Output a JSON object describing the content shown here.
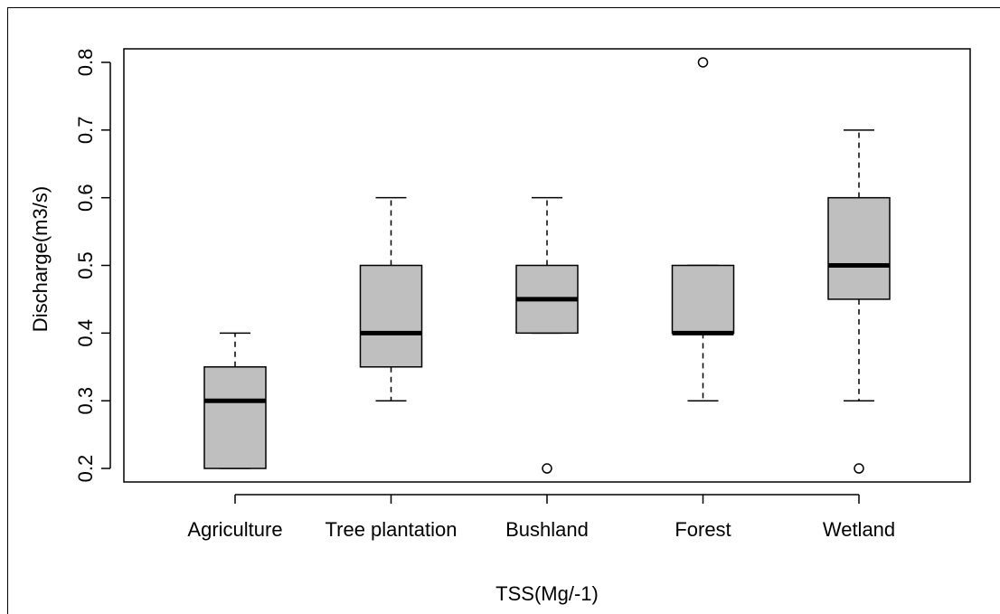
{
  "chart_data": {
    "type": "boxplot",
    "xlabel": "TSS(Mg/-1)",
    "ylabel": "Discharge(m3/s)",
    "ylim": [
      0.18,
      0.82
    ],
    "yticks": [
      "0.2",
      "0.3",
      "0.4",
      "0.5",
      "0.6",
      "0.7",
      "0.8"
    ],
    "box_color": "#bfbfbf",
    "categories": [
      "Agriculture",
      "Tree plantation",
      "Bushland",
      "Forest",
      "Wetland"
    ],
    "boxes": [
      {
        "category": "Agriculture",
        "whisker_low": 0.2,
        "q1": 0.2,
        "median": 0.3,
        "q3": 0.35,
        "whisker_high": 0.4,
        "outliers": []
      },
      {
        "category": "Tree plantation",
        "whisker_low": 0.3,
        "q1": 0.35,
        "median": 0.4,
        "q3": 0.5,
        "whisker_high": 0.6,
        "outliers": []
      },
      {
        "category": "Bushland",
        "whisker_low": 0.4,
        "q1": 0.4,
        "median": 0.45,
        "q3": 0.5,
        "whisker_high": 0.6,
        "outliers": [
          0.2
        ]
      },
      {
        "category": "Forest",
        "whisker_low": 0.3,
        "q1": 0.4,
        "median": 0.4,
        "q3": 0.5,
        "whisker_high": 0.5,
        "outliers": [
          0.8
        ]
      },
      {
        "category": "Wetland",
        "whisker_low": 0.3,
        "q1": 0.45,
        "median": 0.5,
        "q3": 0.6,
        "whisker_high": 0.7,
        "outliers": [
          0.2
        ]
      }
    ]
  }
}
